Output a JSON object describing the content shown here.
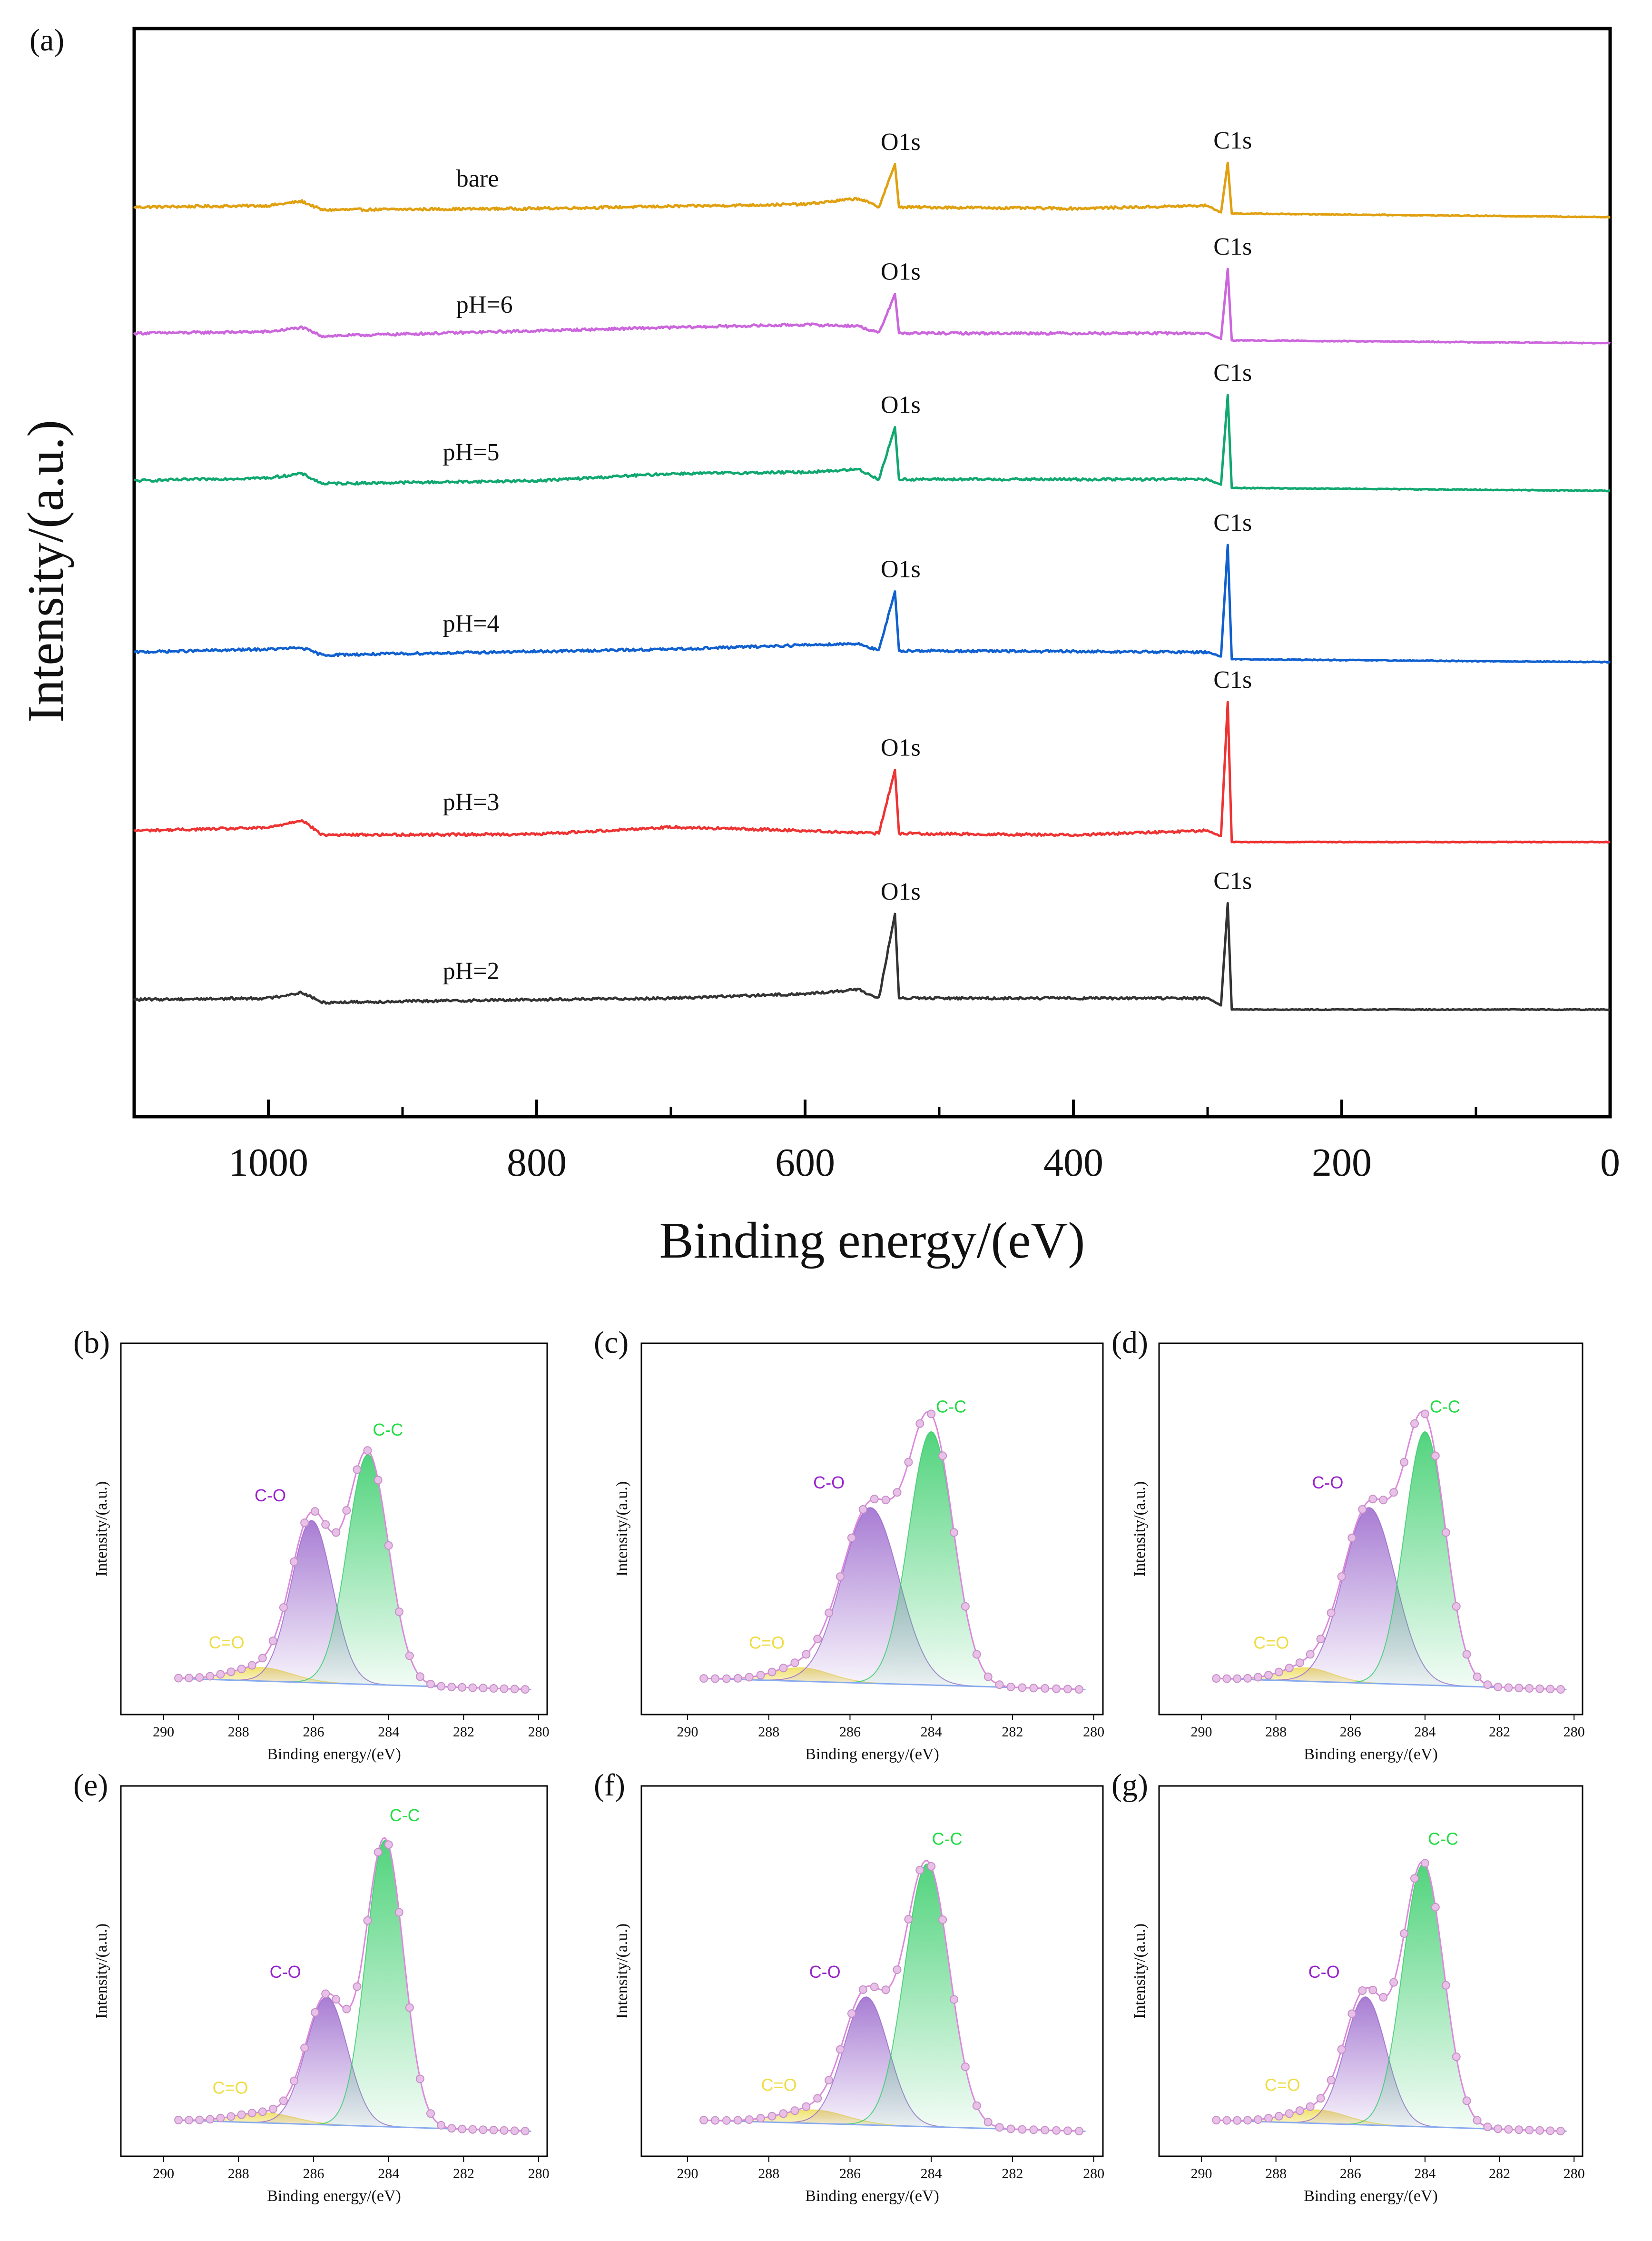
{
  "chart_data": [
    {
      "panel": "(a)",
      "type": "line",
      "xlabel": "Binding energy/(eV)",
      "ylabel": "Intensity/(a.u.)",
      "xlim": [
        1100,
        0
      ],
      "x_ticks": [
        1000,
        800,
        600,
        400,
        200,
        0
      ],
      "x_reversed": true,
      "y_ticks": false,
      "grid": false,
      "series": [
        {
          "name": "bare",
          "color": "#e0a010",
          "points": [
            [
              1100,
              0.1
            ],
            [
              1000,
              0.12
            ],
            [
              975,
              0.18
            ],
            [
              960,
              0.06
            ],
            [
              800,
              0.08
            ],
            [
              600,
              0.14
            ],
            [
              560,
              0.22
            ],
            [
              545,
              0.1
            ],
            [
              533,
              0.7
            ],
            [
              530,
              0.1
            ],
            [
              400,
              0.08
            ],
            [
              300,
              0.12
            ],
            [
              290,
              0.02
            ],
            [
              285,
              0.72
            ],
            [
              282,
              0.01
            ],
            [
              0,
              -0.04
            ]
          ],
          "peaks": [
            {
              "label": "O1s",
              "x": 533
            },
            {
              "label": "C1s",
              "x": 285
            }
          ]
        },
        {
          "name": "pH=6",
          "color": "#cc66dd",
          "points": [
            [
              1100,
              0.1
            ],
            [
              1000,
              0.12
            ],
            [
              975,
              0.18
            ],
            [
              960,
              0.06
            ],
            [
              700,
              0.18
            ],
            [
              600,
              0.22
            ],
            [
              560,
              0.2
            ],
            [
              545,
              0.1
            ],
            [
              533,
              0.65
            ],
            [
              530,
              0.1
            ],
            [
              400,
              0.1
            ],
            [
              300,
              0.1
            ],
            [
              290,
              0.02
            ],
            [
              285,
              1.0
            ],
            [
              282,
              0.0
            ],
            [
              0,
              -0.04
            ]
          ],
          "peaks": [
            {
              "label": "O1s",
              "x": 533
            },
            {
              "label": "C1s",
              "x": 285
            }
          ]
        },
        {
          "name": "pH=5",
          "color": "#10a870",
          "points": [
            [
              1100,
              0.1
            ],
            [
              1000,
              0.14
            ],
            [
              975,
              0.2
            ],
            [
              960,
              0.06
            ],
            [
              800,
              0.1
            ],
            [
              700,
              0.2
            ],
            [
              600,
              0.22
            ],
            [
              560,
              0.26
            ],
            [
              545,
              0.12
            ],
            [
              533,
              0.85
            ],
            [
              530,
              0.12
            ],
            [
              300,
              0.12
            ],
            [
              290,
              0.04
            ],
            [
              285,
              1.3
            ],
            [
              282,
              0.0
            ],
            [
              0,
              -0.04
            ]
          ],
          "peaks": [
            {
              "label": "O1s",
              "x": 533
            },
            {
              "label": "C1s",
              "x": 285
            }
          ]
        },
        {
          "name": "pH=4",
          "color": "#1060d0",
          "points": [
            [
              1100,
              0.1
            ],
            [
              1000,
              0.14
            ],
            [
              975,
              0.16
            ],
            [
              960,
              0.06
            ],
            [
              700,
              0.14
            ],
            [
              600,
              0.2
            ],
            [
              560,
              0.22
            ],
            [
              545,
              0.12
            ],
            [
              533,
              0.95
            ],
            [
              530,
              0.12
            ],
            [
              300,
              0.1
            ],
            [
              290,
              0.04
            ],
            [
              285,
              1.6
            ],
            [
              282,
              0.0
            ],
            [
              0,
              -0.04
            ]
          ],
          "peaks": [
            {
              "label": "O1s",
              "x": 533
            },
            {
              "label": "C1s",
              "x": 285
            }
          ]
        },
        {
          "name": "pH=3",
          "color": "#ee3333",
          "points": [
            [
              1100,
              0.1
            ],
            [
              1000,
              0.14
            ],
            [
              975,
              0.25
            ],
            [
              960,
              0.04
            ],
            [
              800,
              0.05
            ],
            [
              700,
              0.15
            ],
            [
              600,
              0.1
            ],
            [
              545,
              0.06
            ],
            [
              533,
              0.95
            ],
            [
              530,
              0.06
            ],
            [
              400,
              0.04
            ],
            [
              300,
              0.1
            ],
            [
              290,
              0.02
            ],
            [
              285,
              1.9
            ],
            [
              282,
              -0.06
            ],
            [
              0,
              -0.06
            ]
          ],
          "peaks": [
            {
              "label": "O1s",
              "x": 533
            },
            {
              "label": "C1s",
              "x": 285
            }
          ]
        },
        {
          "name": "pH=2",
          "color": "#333333",
          "points": [
            [
              1100,
              0.1
            ],
            [
              1000,
              0.12
            ],
            [
              975,
              0.2
            ],
            [
              960,
              0.06
            ],
            [
              800,
              0.1
            ],
            [
              700,
              0.12
            ],
            [
              600,
              0.18
            ],
            [
              560,
              0.24
            ],
            [
              545,
              0.12
            ],
            [
              533,
              1.3
            ],
            [
              530,
              0.12
            ],
            [
              300,
              0.12
            ],
            [
              290,
              0.02
            ],
            [
              285,
              1.45
            ],
            [
              282,
              -0.04
            ],
            [
              0,
              -0.04
            ]
          ],
          "peaks": [
            {
              "label": "O1s",
              "x": 533
            },
            {
              "label": "C1s",
              "x": 285
            }
          ]
        }
      ]
    },
    {
      "panel": "(b)",
      "type": "area",
      "xlabel": "Binding energy/(eV)",
      "ylabel": "Intensity/(a.u.)",
      "xlim": [
        290,
        280
      ],
      "x_ticks": [
        290,
        288,
        286,
        284,
        282,
        280
      ],
      "components": [
        {
          "name": "C-C",
          "center": 284.55,
          "height": 0.68,
          "width": 0.55,
          "color": "#33cc66",
          "label_color": "#22dd44"
        },
        {
          "name": "C-O",
          "center": 286.05,
          "height": 0.48,
          "width": 0.55,
          "color": "#9966cc",
          "label_color": "#9922cc"
        },
        {
          "name": "C=O",
          "center": 287.4,
          "height": 0.04,
          "width": 0.8,
          "color": "#eedd55",
          "label_color": "#eedd44"
        }
      ],
      "envelope": {
        "color": "#dd88dd"
      },
      "background": {
        "color": "#88aaee",
        "start": 0.035,
        "end": 0.0
      }
    },
    {
      "panel": "(c)",
      "type": "area",
      "xlabel": "Binding energy/(eV)",
      "ylabel": "Intensity/(a.u.)",
      "xlim": [
        290,
        280
      ],
      "x_ticks": [
        290,
        288,
        286,
        284,
        282,
        280
      ],
      "components": [
        {
          "name": "C-C",
          "center": 284.0,
          "height": 0.75,
          "width": 0.55,
          "color": "#33cc66",
          "label_color": "#22dd44"
        },
        {
          "name": "C-O",
          "center": 285.5,
          "height": 0.52,
          "width": 0.7,
          "color": "#9966cc",
          "label_color": "#9922cc"
        },
        {
          "name": "C=O",
          "center": 287.2,
          "height": 0.04,
          "width": 0.7,
          "color": "#eedd55",
          "label_color": "#eedd44"
        }
      ],
      "envelope": {
        "color": "#dd88dd"
      },
      "background": {
        "color": "#88aaee",
        "start": 0.035,
        "end": 0.0
      }
    },
    {
      "panel": "(d)",
      "type": "area",
      "xlabel": "Binding energy/(eV)",
      "ylabel": "Intensity/(a.u.)",
      "xlim": [
        290,
        280
      ],
      "x_ticks": [
        290,
        288,
        286,
        284,
        282,
        280
      ],
      "components": [
        {
          "name": "C-C",
          "center": 284.0,
          "height": 0.75,
          "width": 0.55,
          "color": "#33cc66",
          "label_color": "#22dd44"
        },
        {
          "name": "C-O",
          "center": 285.5,
          "height": 0.52,
          "width": 0.7,
          "color": "#9966cc",
          "label_color": "#9922cc"
        },
        {
          "name": "C=O",
          "center": 287.2,
          "height": 0.04,
          "width": 0.7,
          "color": "#eedd55",
          "label_color": "#eedd44"
        }
      ],
      "envelope": {
        "color": "#dd88dd"
      },
      "background": {
        "color": "#88aaee",
        "start": 0.035,
        "end": 0.0
      }
    },
    {
      "panel": "(e)",
      "type": "area",
      "xlabel": "Binding energy/(eV)",
      "ylabel": "Intensity/(a.u.)",
      "xlim": [
        290,
        280
      ],
      "x_ticks": [
        290,
        288,
        286,
        284,
        282,
        280
      ],
      "components": [
        {
          "name": "C-C",
          "center": 284.1,
          "height": 0.85,
          "width": 0.5,
          "color": "#33cc66",
          "label_color": "#22dd44"
        },
        {
          "name": "C-O",
          "center": 285.65,
          "height": 0.38,
          "width": 0.55,
          "color": "#9966cc",
          "label_color": "#9922cc"
        },
        {
          "name": "C=O",
          "center": 287.3,
          "height": 0.03,
          "width": 0.8,
          "color": "#eedd55",
          "label_color": "#eedd44"
        }
      ],
      "envelope": {
        "color": "#dd88dd"
      },
      "background": {
        "color": "#88aaee",
        "start": 0.035,
        "end": 0.0
      }
    },
    {
      "panel": "(f)",
      "type": "area",
      "xlabel": "Binding energy/(eV)",
      "ylabel": "Intensity/(a.u.)",
      "xlim": [
        290,
        280
      ],
      "x_ticks": [
        290,
        288,
        286,
        284,
        282,
        280
      ],
      "components": [
        {
          "name": "C-C",
          "center": 284.1,
          "height": 0.78,
          "width": 0.55,
          "color": "#33cc66",
          "label_color": "#22dd44"
        },
        {
          "name": "C-O",
          "center": 285.6,
          "height": 0.38,
          "width": 0.55,
          "color": "#9966cc",
          "label_color": "#9922cc"
        },
        {
          "name": "C=O",
          "center": 286.9,
          "height": 0.04,
          "width": 0.8,
          "color": "#eedd55",
          "label_color": "#eedd44"
        }
      ],
      "envelope": {
        "color": "#dd88dd"
      },
      "background": {
        "color": "#88aaee",
        "start": 0.035,
        "end": 0.0
      }
    },
    {
      "panel": "(g)",
      "type": "area",
      "xlabel": "Binding energy/(eV)",
      "ylabel": "Intensity/(a.u.)",
      "xlim": [
        290,
        280
      ],
      "x_ticks": [
        290,
        288,
        286,
        284,
        282,
        280
      ],
      "components": [
        {
          "name": "C-C",
          "center": 284.05,
          "height": 0.78,
          "width": 0.55,
          "color": "#33cc66",
          "label_color": "#22dd44"
        },
        {
          "name": "C-O",
          "center": 285.6,
          "height": 0.38,
          "width": 0.55,
          "color": "#9966cc",
          "label_color": "#9922cc"
        },
        {
          "name": "C=O",
          "center": 286.9,
          "height": 0.04,
          "width": 0.8,
          "color": "#eedd55",
          "label_color": "#eedd44"
        }
      ],
      "envelope": {
        "color": "#dd88dd"
      },
      "background": {
        "color": "#88aaee",
        "start": 0.035,
        "end": 0.0
      }
    }
  ]
}
